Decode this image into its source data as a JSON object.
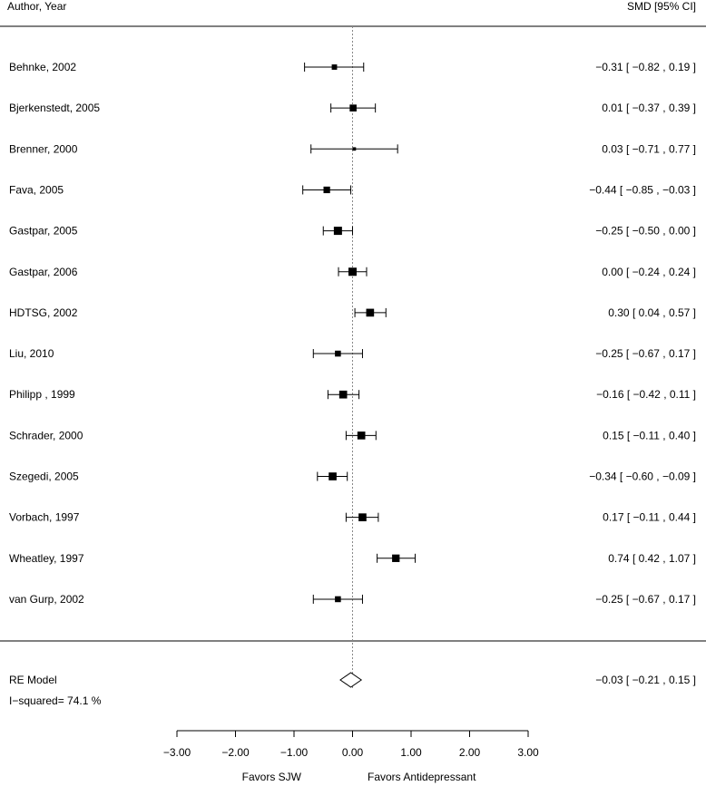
{
  "chart_data": {
    "type": "forest",
    "header": {
      "study_col": "Author, Year",
      "effect_col": "SMD [95% CI]"
    },
    "studies": [
      {
        "label": "Behnke, 2002",
        "est": -0.31,
        "lo": -0.82,
        "hi": 0.19,
        "text": "−0.31 [ −0.82 ,  0.19 ]",
        "weight": 0.55
      },
      {
        "label": "Bjerkenstedt, 2005",
        "est": 0.01,
        "lo": -0.37,
        "hi": 0.39,
        "text": "0.01 [ −0.37 ,  0.39 ]",
        "weight": 0.8
      },
      {
        "label": "Brenner, 2000",
        "est": 0.03,
        "lo": -0.71,
        "hi": 0.77,
        "text": "0.03 [ −0.71 ,  0.77 ]",
        "weight": 0.25
      },
      {
        "label": "Fava, 2005",
        "est": -0.44,
        "lo": -0.85,
        "hi": -0.03,
        "text": "−0.44 [ −0.85 , −0.03 ]",
        "weight": 0.75
      },
      {
        "label": "Gastpar, 2005",
        "est": -0.25,
        "lo": -0.5,
        "hi": 0.0,
        "text": "−0.25 [ −0.50 ,  0.00 ]",
        "weight": 1.0
      },
      {
        "label": "Gastpar, 2006",
        "est": 0.0,
        "lo": -0.24,
        "hi": 0.24,
        "text": "0.00 [ −0.24 ,  0.24 ]",
        "weight": 1.0
      },
      {
        "label": "HDTSG, 2002",
        "est": 0.3,
        "lo": 0.04,
        "hi": 0.57,
        "text": "0.30 [  0.04 ,  0.57 ]",
        "weight": 0.95
      },
      {
        "label": "Liu, 2010",
        "est": -0.25,
        "lo": -0.67,
        "hi": 0.17,
        "text": "−0.25 [ −0.67 ,  0.17 ]",
        "weight": 0.65
      },
      {
        "label": "Philipp , 1999",
        "est": -0.16,
        "lo": -0.42,
        "hi": 0.11,
        "text": "−0.16 [ −0.42 ,  0.11 ]",
        "weight": 0.95
      },
      {
        "label": "Schrader, 2000",
        "est": 0.15,
        "lo": -0.11,
        "hi": 0.4,
        "text": "0.15 [ −0.11 ,  0.40 ]",
        "weight": 0.95
      },
      {
        "label": "Szegedi, 2005",
        "est": -0.34,
        "lo": -0.6,
        "hi": -0.09,
        "text": "−0.34 [ −0.60 , −0.09 ]",
        "weight": 0.95
      },
      {
        "label": "Vorbach, 1997",
        "est": 0.17,
        "lo": -0.11,
        "hi": 0.44,
        "text": "0.17 [ −0.11 ,  0.44 ]",
        "weight": 0.95
      },
      {
        "label": "Wheatley, 1997",
        "est": 0.74,
        "lo": 0.42,
        "hi": 1.07,
        "text": "0.74 [  0.42 ,  1.07 ]",
        "weight": 0.9
      },
      {
        "label": "van Gurp, 2002",
        "est": -0.25,
        "lo": -0.67,
        "hi": 0.17,
        "text": "−0.25 [ −0.67 ,  0.17 ]",
        "weight": 0.65
      }
    ],
    "summary": {
      "label": "RE Model",
      "est": -0.03,
      "lo": -0.21,
      "hi": 0.15,
      "text": "−0.03 [ −0.21 ,  0.15 ]"
    },
    "heterogeneity": "I−squared= 74.1 %",
    "x_axis": {
      "min": -3.0,
      "max": 3.0,
      "ticks": [
        -3,
        -2,
        -1,
        0,
        1,
        2,
        3
      ],
      "tick_labels": [
        "−3.00",
        "−2.00",
        "−1.00",
        "0.00",
        "1.00",
        "2.00",
        "3.00"
      ]
    },
    "favors_left": "Favors SJW",
    "favors_right": "Favors Antidepressant",
    "reference_line": 0
  }
}
